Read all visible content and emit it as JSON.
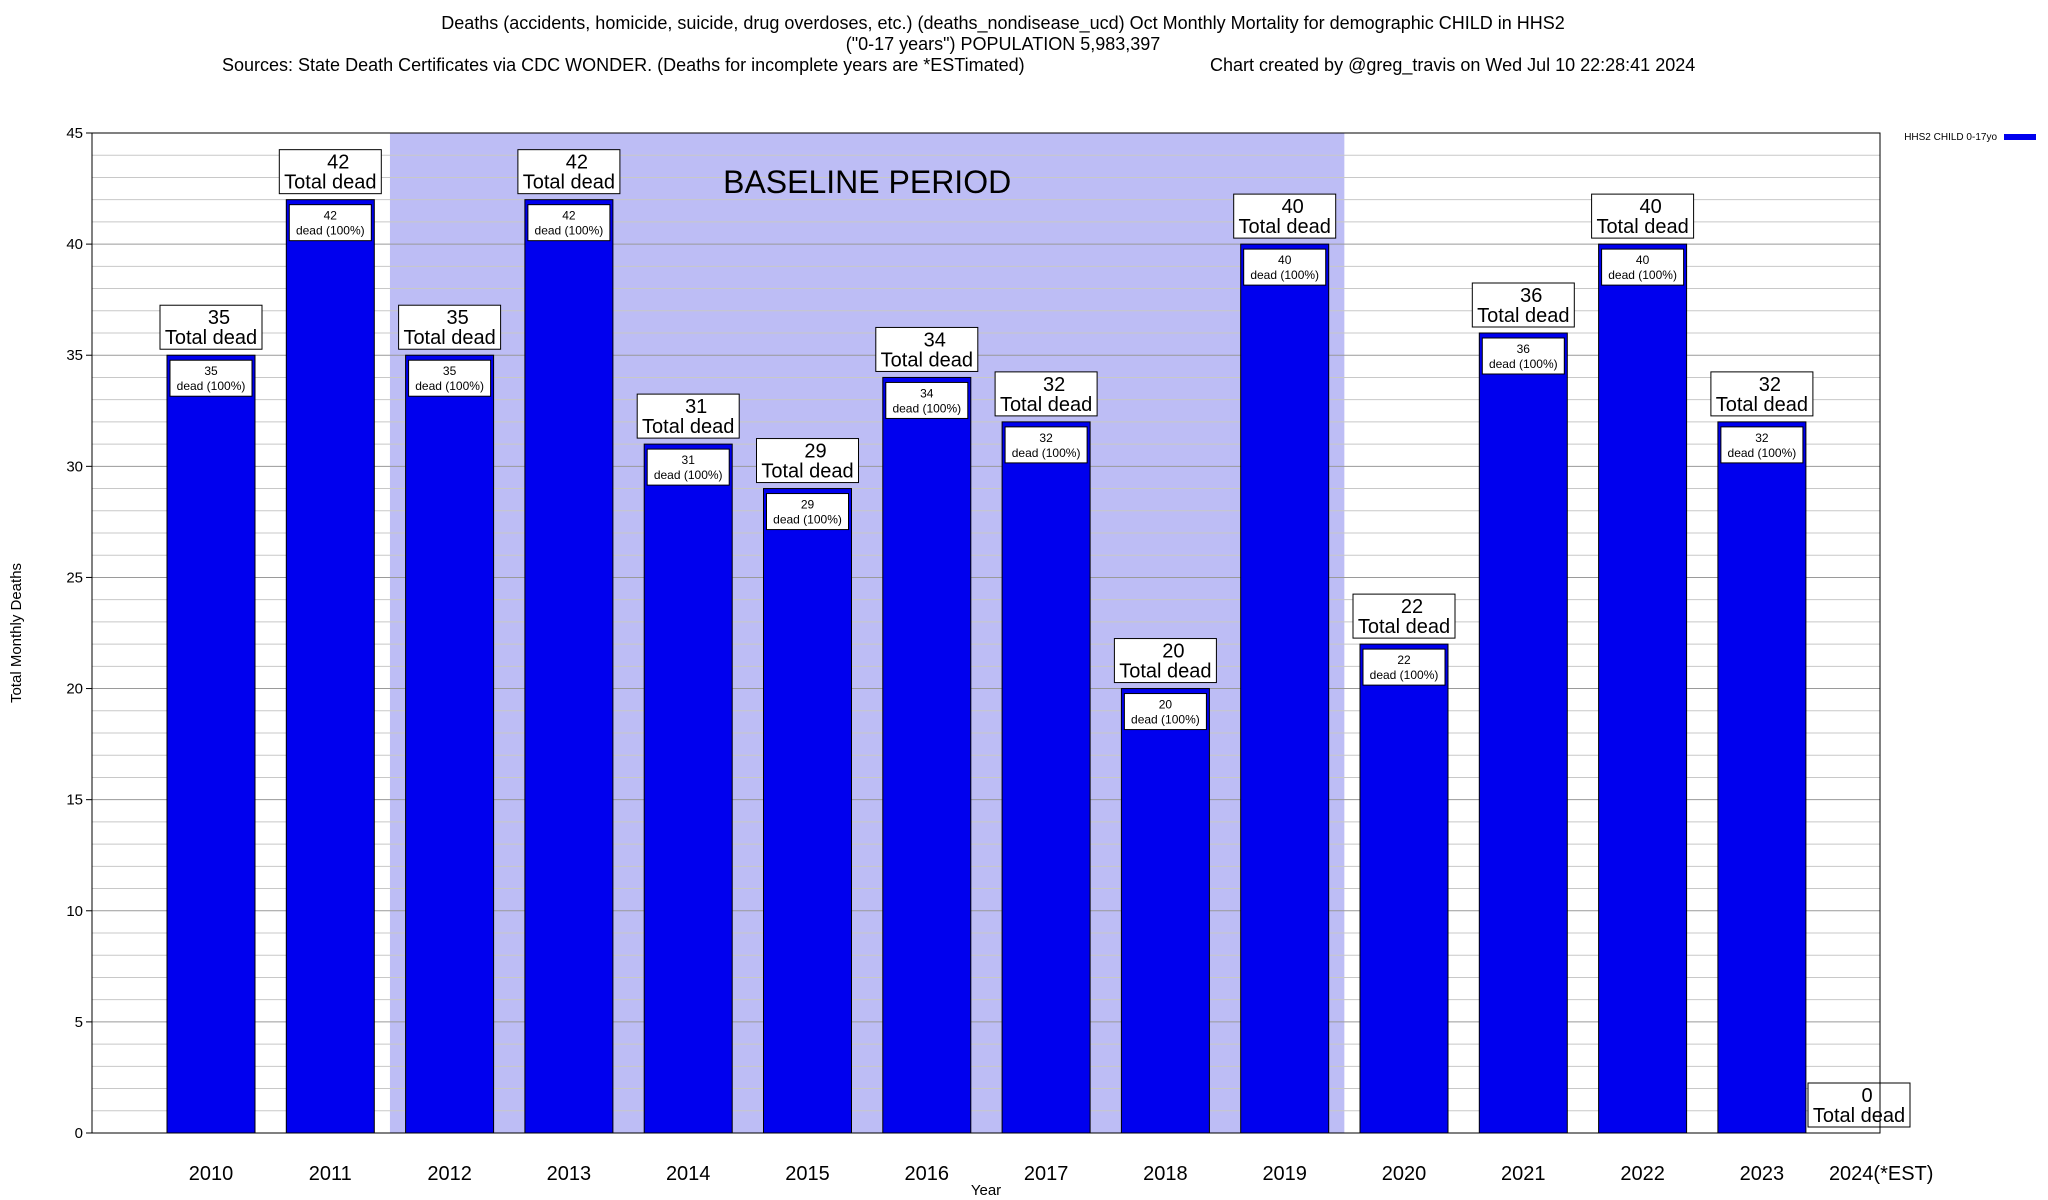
{
  "chart_data": {
    "type": "bar",
    "title_lines": [
      "Deaths (accidents, homicide, suicide, drug overdoses, etc.) (deaths_nondisease_ucd) Oct Monthly Mortality for demographic CHILD in HHS2",
      "(\"0-17 years\") POPULATION 5,983,397"
    ],
    "sources": "Sources: State Death Certificates via CDC WONDER. (Deaths for incomplete years are *ESTimated)",
    "credit": "Chart created by @greg_travis on Wed Jul 10 22:28:41 2024",
    "xlabel": "Year",
    "ylabel": "Total Monthly Deaths",
    "ylim": [
      0,
      45
    ],
    "y_ticks": [
      0,
      5,
      10,
      15,
      20,
      25,
      30,
      35,
      40,
      45
    ],
    "grid": true,
    "legend": {
      "label": "HHS2 CHILD 0-17yo",
      "color": "#0000ee",
      "placement": "top-right"
    },
    "bar_color": "#0000ee",
    "highlight_color": "#bdbdf5",
    "categories": [
      "2010",
      "2011",
      "2012",
      "2013",
      "2014",
      "2015",
      "2016",
      "2017",
      "2018",
      "2019",
      "2020",
      "2021",
      "2022",
      "2023",
      "2024(*EST)"
    ],
    "values": [
      35,
      42,
      35,
      42,
      31,
      29,
      34,
      32,
      20,
      40,
      22,
      36,
      40,
      32,
      0
    ],
    "top_labels": [
      [
        "35",
        "Total dead"
      ],
      [
        "42",
        "Total dead"
      ],
      [
        "35",
        "Total dead"
      ],
      [
        "42",
        "Total dead"
      ],
      [
        "31",
        "Total dead"
      ],
      [
        "29",
        "Total dead"
      ],
      [
        "34",
        "Total dead"
      ],
      [
        "32",
        "Total dead"
      ],
      [
        "20",
        "Total dead"
      ],
      [
        "40",
        "Total dead"
      ],
      [
        "22",
        "Total dead"
      ],
      [
        "36",
        "Total dead"
      ],
      [
        "40",
        "Total dead"
      ],
      [
        "32",
        "Total dead"
      ],
      [
        "0",
        "Total dead"
      ]
    ],
    "inner_labels": [
      [
        "35",
        "dead (100%)"
      ],
      [
        "42",
        "dead (100%)"
      ],
      [
        "35",
        "dead (100%)"
      ],
      [
        "42",
        "dead (100%)"
      ],
      [
        "31",
        "dead (100%)"
      ],
      [
        "29",
        "dead (100%)"
      ],
      [
        "34",
        "dead (100%)"
      ],
      [
        "32",
        "dead (100%)"
      ],
      [
        "20",
        "dead (100%)"
      ],
      [
        "40",
        "dead (100%)"
      ],
      [
        "22",
        "dead (100%)"
      ],
      [
        "36",
        "dead (100%)"
      ],
      [
        "40",
        "dead (100%)"
      ],
      [
        "32",
        "dead (100%)"
      ],
      null
    ],
    "annotations": [
      {
        "text": "BASELINE PERIOD",
        "x_from": "2012",
        "x_to": "2019"
      }
    ]
  }
}
